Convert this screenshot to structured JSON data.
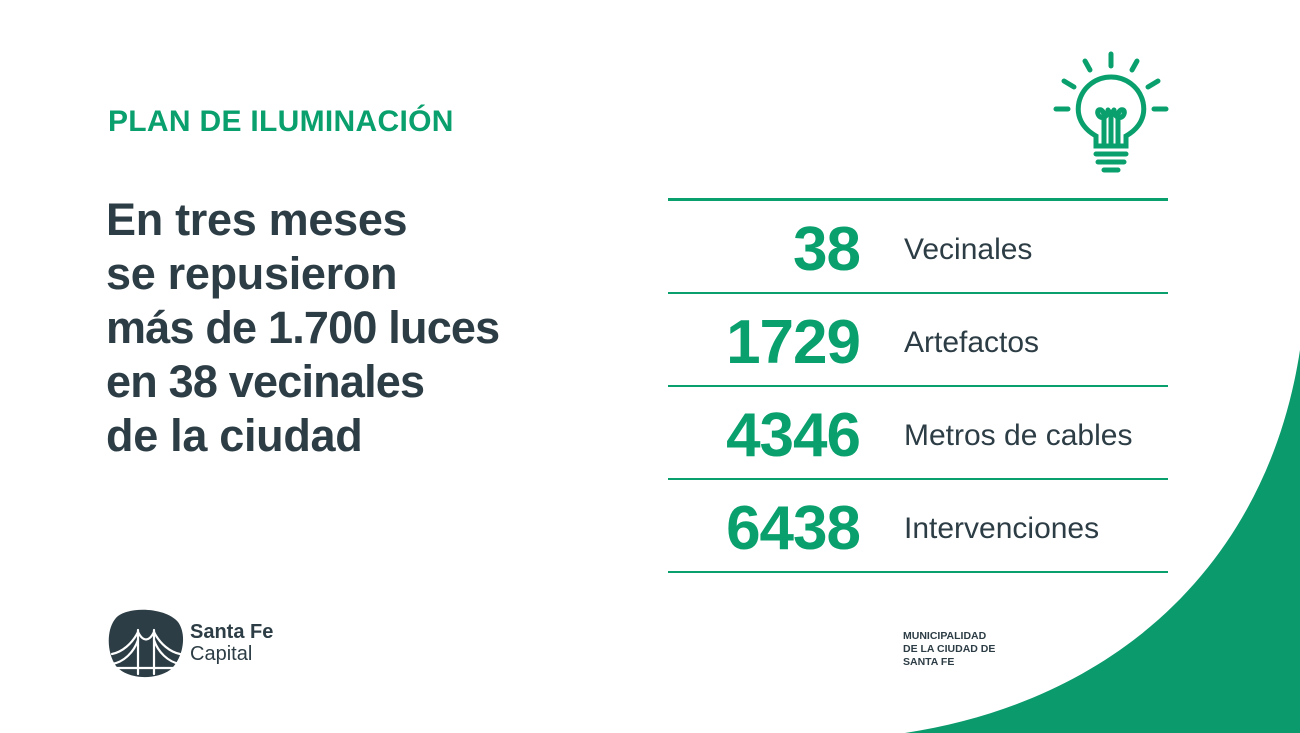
{
  "header": {
    "kicker": "PLAN DE ILUMINACIÓN"
  },
  "headline": {
    "line1": "En tres meses",
    "line2": "se repusieron",
    "line3_bold": "más de 1.700 luces",
    "line4_bold": "en 38 vecinales",
    "line5": "de la ciudad"
  },
  "stats": [
    {
      "value": "38",
      "label": "Vecinales"
    },
    {
      "value": "1729",
      "label": "Artefactos"
    },
    {
      "value": "4346",
      "label": "Metros de cables"
    },
    {
      "value": "6438",
      "label": "Intervenciones"
    }
  ],
  "logo": {
    "name": "Santa Fe",
    "sub": "Capital"
  },
  "municipality": {
    "line1": "MUNICIPALIDAD",
    "line2": "DE LA CIUDAD DE",
    "line3": "SANTA FE"
  },
  "icons": {
    "bulb": "light-bulb-icon",
    "logo": "bridge-logo-icon"
  },
  "colors": {
    "accent_green": "#0aa06e",
    "text_dark": "#2d3d45",
    "background": "#ffffff"
  }
}
